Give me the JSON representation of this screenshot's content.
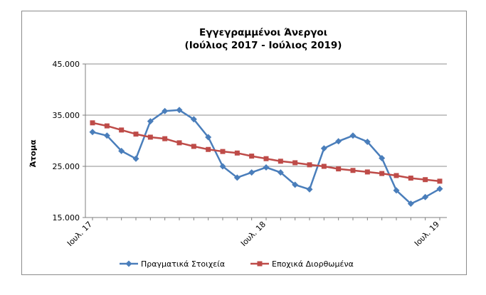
{
  "chart_data": {
    "type": "line",
    "title_line1": "Εγγεγραμμένοι Άνεργοι",
    "title_line2": "(Ιούλιος 2017 - Ιούλιος 2019)",
    "xlabel": "",
    "ylabel": "Άτομα",
    "ylim": [
      15000,
      45000
    ],
    "y_ticks": [
      15000,
      25000,
      35000,
      45000
    ],
    "y_tick_labels": [
      "15.000",
      "25.000",
      "35.000",
      "45.000"
    ],
    "x_tick_labels": [
      {
        "index": 0,
        "label": "Ιουλ. 17"
      },
      {
        "index": 12,
        "label": "Ιουλ. 18"
      },
      {
        "index": 24,
        "label": "Ιουλ. 19"
      }
    ],
    "grid": "horizontal",
    "legend_position": "bottom",
    "series": [
      {
        "name": "Πραγματικά Στοιχεία",
        "color": "#4a7ebb",
        "marker": "diamond",
        "values": [
          31700,
          31000,
          28000,
          26500,
          33800,
          35800,
          36000,
          34200,
          30700,
          25000,
          22800,
          23800,
          24800,
          23800,
          21400,
          20500,
          28500,
          29900,
          31000,
          29800,
          26600,
          20300,
          17700,
          19000,
          20600
        ]
      },
      {
        "name": "Εποχικά Διορθωμένα",
        "color": "#be4b48",
        "marker": "square",
        "values": [
          33500,
          32900,
          32100,
          31300,
          30700,
          30400,
          29600,
          28900,
          28300,
          27900,
          27600,
          27000,
          26500,
          26000,
          25700,
          25300,
          25000,
          24500,
          24200,
          23900,
          23600,
          23200,
          22700,
          22400,
          22100
        ]
      }
    ]
  }
}
